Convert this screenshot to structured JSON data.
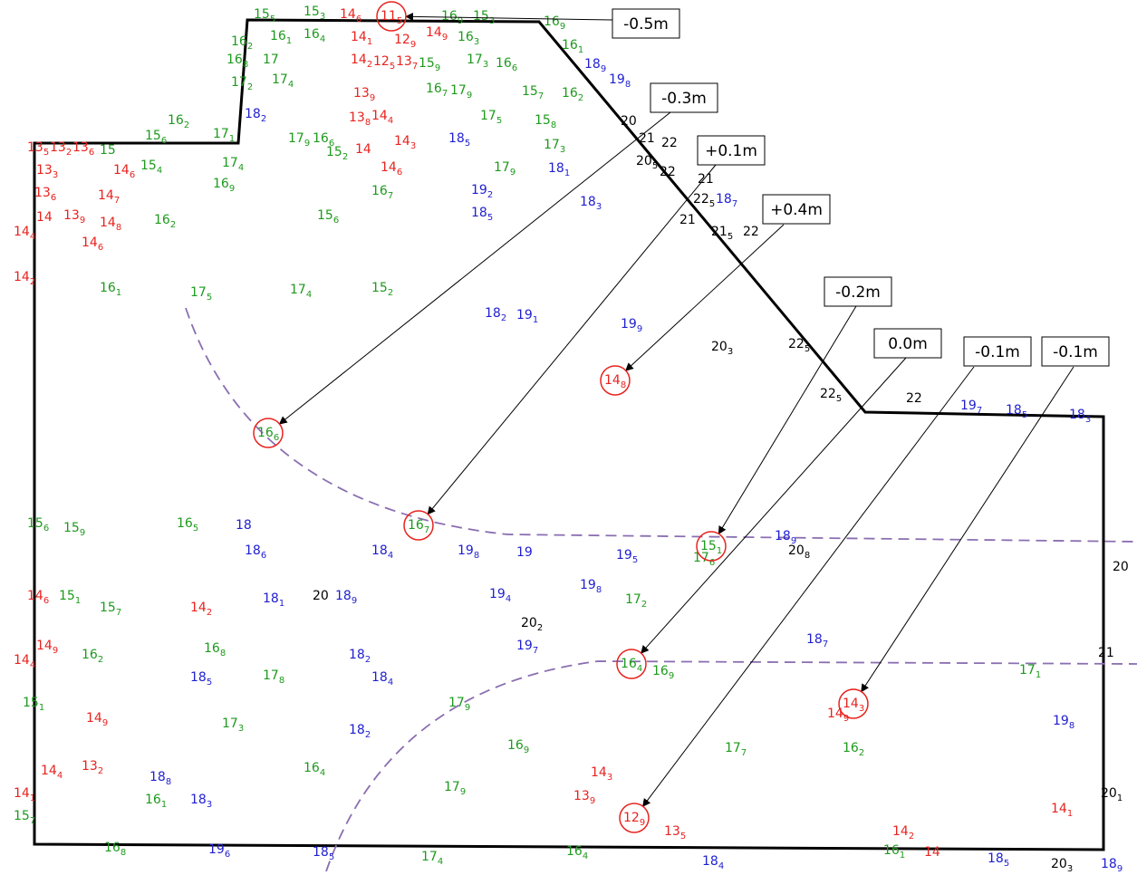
{
  "callouts": [
    {
      "label": "-0.5m",
      "point": [
        "11",
        "5"
      ]
    },
    {
      "label": "-0.3m",
      "point": [
        "16",
        "6"
      ]
    },
    {
      "label": "+0.1m",
      "point": [
        "16",
        "7"
      ]
    },
    {
      "label": "+0.4m",
      "point": [
        "14",
        "8"
      ]
    },
    {
      "label": "-0.2m",
      "point": [
        "15",
        "1"
      ]
    },
    {
      "label": "0.0m",
      "point": [
        "16",
        "4"
      ]
    },
    {
      "label": "-0.1m",
      "point": [
        "12",
        "9"
      ]
    },
    {
      "label": "-0.1m",
      "point": [
        "14",
        "3"
      ]
    }
  ],
  "spots": [
    [
      "15",
      "5"
    ],
    [
      "15",
      "3"
    ],
    [
      "14",
      "6"
    ],
    [
      "16",
      "9"
    ],
    [
      "15",
      "3"
    ],
    [
      "16",
      "9"
    ],
    [
      "16",
      "2"
    ],
    [
      "16",
      "1"
    ],
    [
      "16",
      "4"
    ],
    [
      "14",
      "1"
    ],
    [
      "12",
      "9"
    ],
    [
      "14",
      "9"
    ],
    [
      "16",
      "3"
    ],
    [
      "16",
      "1"
    ],
    [
      "18",
      "9"
    ],
    [
      "19",
      "8"
    ],
    [
      "16",
      "8"
    ],
    [
      "17"
    ],
    [
      "14",
      "2"
    ],
    [
      "12",
      "5"
    ],
    [
      "13",
      "7"
    ],
    [
      "15",
      "9"
    ],
    [
      "17",
      "3"
    ],
    [
      "16",
      "6"
    ],
    [
      "17",
      "2"
    ],
    [
      "17",
      "4"
    ],
    [
      "16",
      "7"
    ],
    [
      "17",
      "9"
    ],
    [
      "15",
      "7"
    ],
    [
      "16",
      "2"
    ],
    [
      "13",
      "9"
    ],
    [
      "18",
      "2"
    ],
    [
      "13",
      "8"
    ],
    [
      "14",
      "4"
    ],
    [
      "17",
      "5"
    ],
    [
      "15",
      "8"
    ],
    [
      "20"
    ],
    [
      "16",
      "2"
    ],
    [
      "15",
      "6"
    ],
    [
      "17",
      "1"
    ],
    [
      "13",
      "5"
    ],
    [
      "13",
      "2"
    ],
    [
      "13",
      "6"
    ],
    [
      "15"
    ],
    [
      "17",
      "9"
    ],
    [
      "16",
      "6"
    ],
    [
      "14",
      "3"
    ],
    [
      "18",
      "5"
    ],
    [
      "17",
      "3"
    ],
    [
      "21"
    ],
    [
      "22"
    ],
    [
      "13",
      "3"
    ],
    [
      "14",
      "6"
    ],
    [
      "15",
      "4"
    ],
    [
      "17",
      "4"
    ],
    [
      "15",
      "2"
    ],
    [
      "14"
    ],
    [
      "14",
      "6"
    ],
    [
      "17",
      "9"
    ],
    [
      "18",
      "1"
    ],
    [
      "20",
      "5"
    ],
    [
      "22"
    ],
    [
      "21"
    ],
    [
      "13",
      "6"
    ],
    [
      "14",
      "7"
    ],
    [
      "16",
      "9"
    ],
    [
      "16",
      "7"
    ],
    [
      "19",
      "2"
    ],
    [
      "18",
      "3"
    ],
    [
      "22",
      "5"
    ],
    [
      "18",
      "7"
    ],
    [
      "14"
    ],
    [
      "13",
      "9"
    ],
    [
      "14",
      "8"
    ],
    [
      "16",
      "2"
    ],
    [
      "15",
      "6"
    ],
    [
      "18",
      "5"
    ],
    [
      "21"
    ],
    [
      "21",
      "5"
    ],
    [
      "22"
    ],
    [
      "14",
      "4"
    ],
    [
      "14",
      "6"
    ],
    [
      "14",
      "2"
    ],
    [
      "16",
      "1"
    ],
    [
      "17",
      "5"
    ],
    [
      "17",
      "4"
    ],
    [
      "15",
      "2"
    ],
    [
      "18",
      "2"
    ],
    [
      "19",
      "1"
    ],
    [
      "19",
      "9"
    ],
    [
      "20",
      "3"
    ],
    [
      "22",
      "5"
    ],
    [
      "22",
      "5"
    ],
    [
      "22"
    ],
    [
      "19",
      "7"
    ],
    [
      "18",
      "5"
    ],
    [
      "18",
      "3"
    ],
    [
      "15",
      "6"
    ],
    [
      "15",
      "9"
    ],
    [
      "16",
      "5"
    ],
    [
      "18"
    ],
    [
      "18",
      "6"
    ],
    [
      "18",
      "4"
    ],
    [
      "19",
      "8"
    ],
    [
      "19"
    ],
    [
      "19",
      "5"
    ],
    [
      "17",
      "6"
    ],
    [
      "18",
      "9"
    ],
    [
      "20",
      "8"
    ],
    [
      "20"
    ],
    [
      "14",
      "6"
    ],
    [
      "15",
      "1"
    ],
    [
      "15",
      "7"
    ],
    [
      "14",
      "2"
    ],
    [
      "18",
      "1"
    ],
    [
      "20"
    ],
    [
      "18",
      "9"
    ],
    [
      "19",
      "4"
    ],
    [
      "19",
      "8"
    ],
    [
      "17",
      "2"
    ],
    [
      "14",
      "9"
    ],
    [
      "16",
      "2"
    ],
    [
      "16",
      "8"
    ],
    [
      "18",
      "2"
    ],
    [
      "20",
      "2"
    ],
    [
      "19",
      "7"
    ],
    [
      "18",
      "7"
    ],
    [
      "21"
    ],
    [
      "14",
      "4"
    ],
    [
      "18",
      "5"
    ],
    [
      "17",
      "8"
    ],
    [
      "18",
      "4"
    ],
    [
      "16",
      "9"
    ],
    [
      "17",
      "1"
    ],
    [
      "15",
      "1"
    ],
    [
      "14",
      "9"
    ],
    [
      "17",
      "3"
    ],
    [
      "18",
      "2"
    ],
    [
      "17",
      "9"
    ],
    [
      "14",
      "3"
    ],
    [
      "14",
      "9"
    ],
    [
      "19",
      "8"
    ],
    [
      "14",
      "4"
    ],
    [
      "13",
      "2"
    ],
    [
      "18",
      "8"
    ],
    [
      "16",
      "4"
    ],
    [
      "16",
      "9"
    ],
    [
      "17",
      "7"
    ],
    [
      "16",
      "2"
    ],
    [
      "14",
      "1"
    ],
    [
      "16",
      "1"
    ],
    [
      "18",
      "3"
    ],
    [
      "17",
      "9"
    ],
    [
      "13",
      "9"
    ],
    [
      "13",
      "5"
    ],
    [
      "14",
      "2"
    ],
    [
      "14",
      "1"
    ],
    [
      "20",
      "1"
    ],
    [
      "15",
      "7"
    ],
    [
      "16",
      "8"
    ],
    [
      "19",
      "6"
    ],
    [
      "18",
      "5"
    ],
    [
      "17",
      "4"
    ],
    [
      "16",
      "4"
    ],
    [
      "18",
      "4"
    ],
    [
      "16",
      "1"
    ],
    [
      "18",
      "5"
    ],
    [
      "20",
      "3"
    ],
    [
      "18",
      "9"
    ],
    [
      "14"
    ]
  ]
}
